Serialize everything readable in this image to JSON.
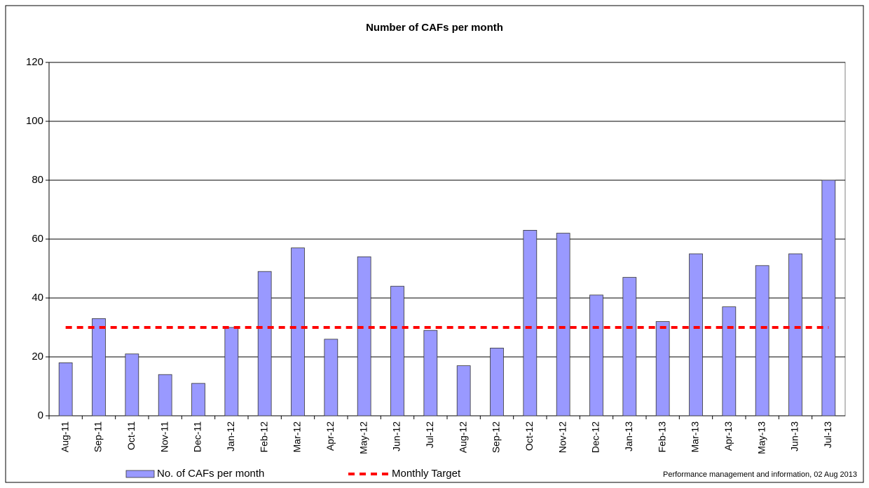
{
  "chart_data": {
    "type": "bar",
    "title": "Number of CAFs per month",
    "categories": [
      "Aug-11",
      "Sep-11",
      "Oct-11",
      "Nov-11",
      "Dec-11",
      "Jan-12",
      "Feb-12",
      "Mar-12",
      "Apr-12",
      "May-12",
      "Jun-12",
      "Jul-12",
      "Aug-12",
      "Sep-12",
      "Oct-12",
      "Nov-12",
      "Dec-12",
      "Jan-13",
      "Feb-13",
      "Mar-13",
      "Apr-13",
      "May-13",
      "Jun-13",
      "Jul-13"
    ],
    "series": [
      {
        "name": "No. of CAFs per month",
        "type": "bar",
        "color": "#9999ff",
        "values": [
          18,
          33,
          21,
          14,
          11,
          30,
          49,
          57,
          26,
          54,
          44,
          29,
          17,
          23,
          63,
          62,
          41,
          47,
          32,
          55,
          37,
          51,
          55,
          80
        ]
      },
      {
        "name": "Monthly Target",
        "type": "line",
        "dashed": true,
        "color": "#ff0000",
        "values": [
          30,
          30,
          30,
          30,
          30,
          30,
          30,
          30,
          30,
          30,
          30,
          30,
          30,
          30,
          30,
          30,
          30,
          30,
          30,
          30,
          30,
          30,
          30,
          30
        ]
      }
    ],
    "ylim": [
      0,
      120
    ],
    "yticks": [
      0,
      20,
      40,
      60,
      80,
      100,
      120
    ],
    "grid": true,
    "annotation": "Performance management and information, 02 Aug 2013"
  }
}
